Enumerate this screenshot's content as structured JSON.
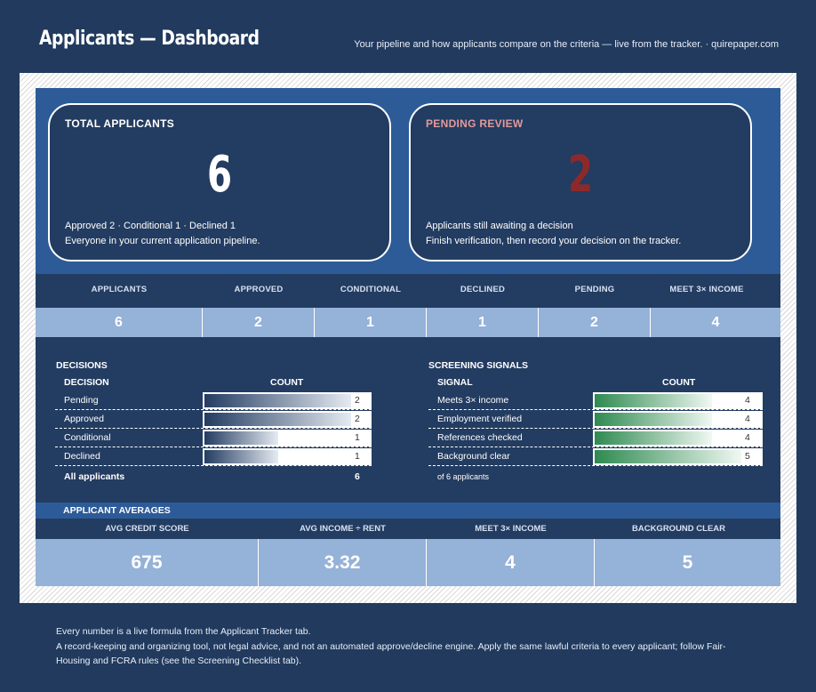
{
  "header": {
    "title": "Applicants — Dashboard",
    "subtitle": "Your pipeline and how applicants compare on the criteria — live from the tracker.  ·  quirepaper.com"
  },
  "kpi": {
    "total": {
      "label": "TOTAL APPLICANTS",
      "value": "6",
      "line1": "Approved 2  ·  Conditional 1  ·  Declined 1",
      "line2": "Everyone in your current application pipeline."
    },
    "pending": {
      "label": "PENDING REVIEW",
      "value": "2",
      "line1": "Applicants still awaiting a decision",
      "line2": "Finish verification, then record your decision on the tracker."
    }
  },
  "stats": [
    {
      "label": "APPLICANTS",
      "value": "6"
    },
    {
      "label": "APPROVED",
      "value": "2"
    },
    {
      "label": "CONDITIONAL",
      "value": "1"
    },
    {
      "label": "DECLINED",
      "value": "1"
    },
    {
      "label": "PENDING",
      "value": "2"
    },
    {
      "label": "MEET 3× INCOME",
      "value": "4"
    }
  ],
  "decisions": {
    "title": "DECISIONS",
    "col_label": "DECISION",
    "col_count": "COUNT",
    "rows": [
      {
        "label": "Pending",
        "count": "2",
        "fraction": 1.0
      },
      {
        "label": "Approved",
        "count": "2",
        "fraction": 1.0
      },
      {
        "label": "Conditional",
        "count": "1",
        "fraction": 0.5
      },
      {
        "label": "Declined",
        "count": "1",
        "fraction": 0.5
      }
    ],
    "total_label": "All applicants",
    "total_value": "6"
  },
  "signals": {
    "title": "SCREENING SIGNALS",
    "col_label": "SIGNAL",
    "col_count": "COUNT",
    "rows": [
      {
        "label": "Meets 3× income",
        "count": "4",
        "fraction": 0.8
      },
      {
        "label": "Employment verified",
        "count": "4",
        "fraction": 0.8
      },
      {
        "label": "References checked",
        "count": "4",
        "fraction": 0.8
      },
      {
        "label": "Background clear",
        "count": "5",
        "fraction": 1.0
      }
    ],
    "note": "of 6 applicants"
  },
  "averages": {
    "title": "APPLICANT AVERAGES",
    "items": [
      {
        "label": "AVG CREDIT SCORE",
        "value": "675"
      },
      {
        "label": "AVG INCOME ÷ RENT",
        "value": "3.32"
      },
      {
        "label": "MEET 3× INCOME",
        "value": "4"
      },
      {
        "label": "BACKGROUND CLEAR",
        "value": "5"
      }
    ]
  },
  "footer": {
    "line1": "Every number is a live formula from the Applicant Tracker tab.",
    "line2": "A record-keeping and organizing tool, not legal advice, and not an automated approve/decline engine. Apply the same lawful criteria to every applicant; follow Fair-",
    "line3": "Housing and FCRA rules (see the Screening Checklist tab)."
  },
  "colors": {
    "background": "#213a5e",
    "band": "#2d5b98",
    "value_cells": "#95b2d8",
    "pending_label": "#e39a9a",
    "pending_value": "#8c2a2a",
    "bar_green": "#2e8a50"
  }
}
